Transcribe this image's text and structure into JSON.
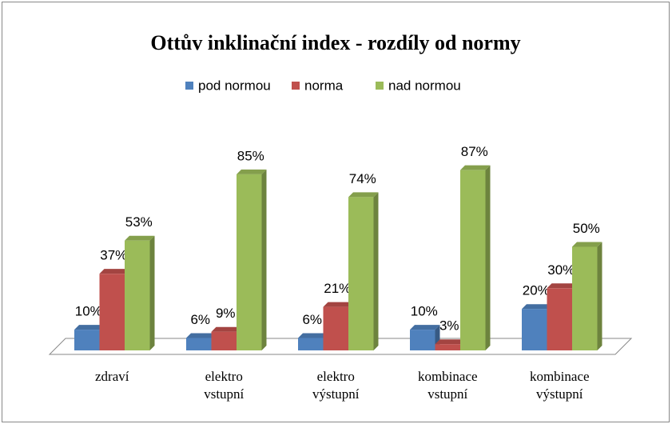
{
  "chart_data": {
    "type": "bar3d",
    "title": "Ottův inklinační index -  rozdíly od normy",
    "categories": [
      "zdraví",
      "elektro vstupní",
      "elektro výstupní",
      "kombinace vstupní",
      "kombinace výstupní"
    ],
    "series": [
      {
        "name": "pod normou",
        "color": "#4f81bd",
        "values": [
          10,
          6,
          6,
          10,
          20
        ],
        "value_labels": [
          "10%",
          "6%",
          "6%",
          "10%",
          "20%"
        ]
      },
      {
        "name": "norma",
        "color": "#c0504d",
        "values": [
          37,
          9,
          21,
          3,
          30
        ],
        "value_labels": [
          "37%",
          "9%",
          "21%",
          "3%",
          "30%"
        ]
      },
      {
        "name": "nad normou",
        "color": "#9bbb59",
        "values": [
          53,
          85,
          74,
          87,
          50
        ],
        "value_labels": [
          "53%",
          "85%",
          "74%",
          "87%",
          "50%"
        ]
      }
    ],
    "legend": "top"
  }
}
